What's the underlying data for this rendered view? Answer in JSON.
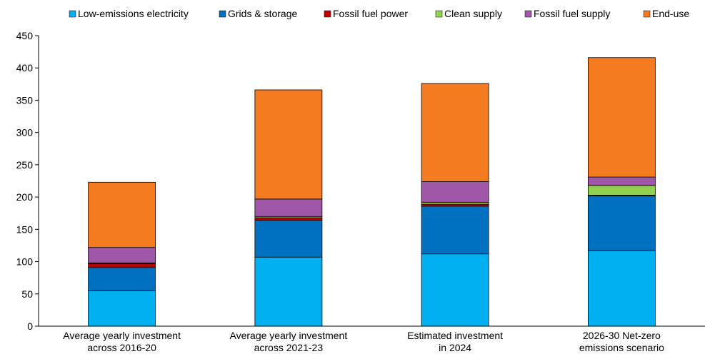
{
  "chart_data": {
    "type": "bar",
    "stacked": true,
    "categories": [
      [
        "Average yearly investment",
        "across 2016-20"
      ],
      [
        "Average yearly investment",
        "across 2021-23"
      ],
      [
        "Estimated investment",
        "in 2024"
      ],
      [
        "2026-30 Net-zero",
        "emissions scenario"
      ]
    ],
    "series": [
      {
        "name": "Low-emissions electricity",
        "color": "#00B0F0",
        "values": [
          55,
          107,
          112,
          117
        ]
      },
      {
        "name": "Grids & storage",
        "color": "#0070C0",
        "values": [
          36,
          57,
          74,
          85
        ]
      },
      {
        "name": "Fossil fuel power",
        "color": "#C00000",
        "values": [
          6,
          4,
          3,
          1
        ]
      },
      {
        "name": "Clean supply",
        "color": "#92D050",
        "values": [
          1,
          2,
          3,
          15
        ]
      },
      {
        "name": "Fossil fuel supply",
        "color": "#A057A8",
        "values": [
          24,
          27,
          32,
          13
        ]
      },
      {
        "name": "End-use",
        "color": "#F47B20",
        "values": [
          101,
          169,
          152,
          185
        ]
      }
    ],
    "ylim": [
      0,
      450
    ],
    "yticks": [
      0,
      50,
      100,
      150,
      200,
      250,
      300,
      350,
      400,
      450
    ],
    "grid": false,
    "legend": "top"
  }
}
